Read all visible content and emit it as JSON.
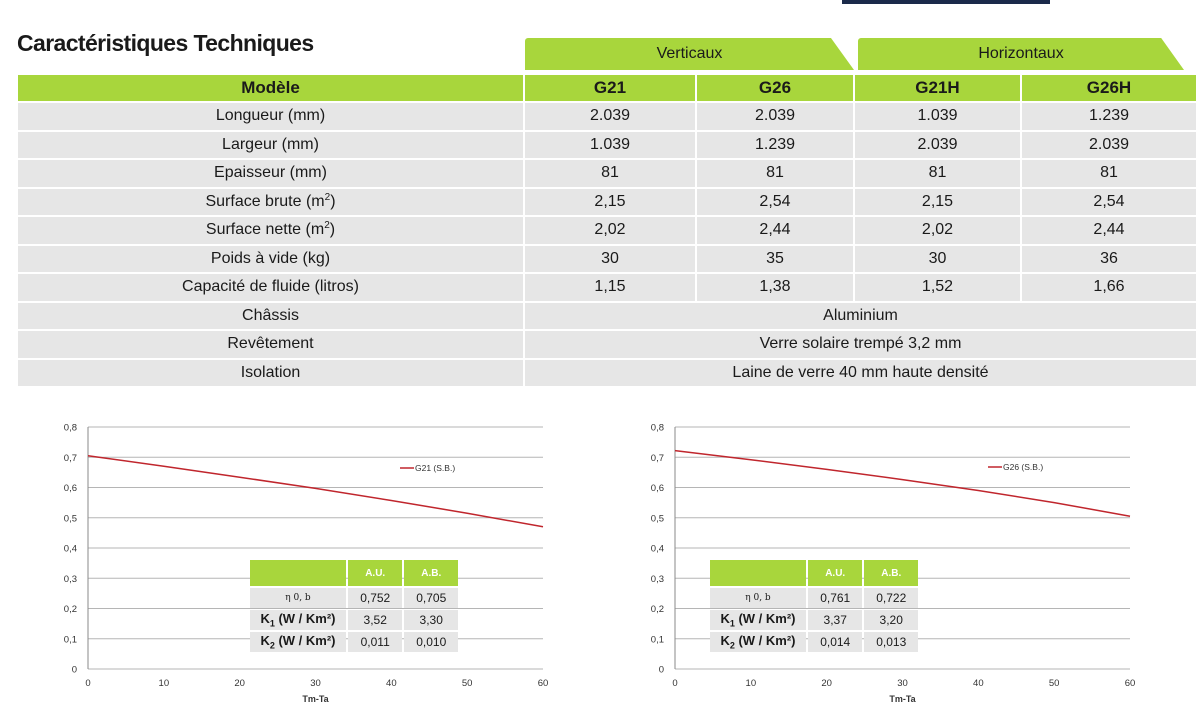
{
  "title": "Caractéristiques Techniques",
  "groups": {
    "vertical": "Verticaux",
    "horizontal": "Horizontaux"
  },
  "colors": {
    "accent_green": "#a8d63c",
    "row_grey": "#e6e6e6",
    "curve_red": "#c0262d"
  },
  "table": {
    "model_header": "Modèle",
    "models": [
      "G21",
      "G26",
      "G21H",
      "G26H"
    ],
    "rows": [
      {
        "label": "Longueur (mm)",
        "values": [
          "2.039",
          "2.039",
          "1.039",
          "1.239"
        ]
      },
      {
        "label": "Largeur (mm)",
        "values": [
          "1.039",
          "1.239",
          "2.039",
          "2.039"
        ]
      },
      {
        "label": "Epaisseur (mm)",
        "values": [
          "81",
          "81",
          "81",
          "81"
        ]
      },
      {
        "label": "Surface brute (m",
        "sup": "2",
        "suffix": ")",
        "values": [
          "2,15",
          "2,54",
          "2,15",
          "2,54"
        ]
      },
      {
        "label": "Surface nette (m",
        "sup": "2",
        "suffix": ")",
        "values": [
          "2,02",
          "2,44",
          "2,02",
          "2,44"
        ]
      },
      {
        "label": "Poids à vide (kg)",
        "values": [
          "30",
          "35",
          "30",
          "36"
        ]
      },
      {
        "label": "Capacité de fluide (litros)",
        "values": [
          "1,15",
          "1,38",
          "1,52",
          "1,66"
        ]
      }
    ],
    "merged_rows": [
      {
        "label": "Châssis",
        "value": "Aluminium"
      },
      {
        "label": "Revêtement",
        "value": "Verre solaire trempé 3,2 mm"
      },
      {
        "label": "Isolation",
        "value": "Laine de verre 40 mm haute densité"
      }
    ]
  },
  "chart_data": [
    {
      "type": "line",
      "xlabel": "Tm-Ta",
      "ylabel": "",
      "xlim": [
        0,
        60
      ],
      "ylim": [
        0,
        0.8
      ],
      "x_ticks": [
        "0",
        "10",
        "20",
        "30",
        "40",
        "50",
        "60"
      ],
      "y_ticks": [
        "0",
        "0,1",
        "0,2",
        "0,3",
        "0,4",
        "0,5",
        "0,6",
        "0,7",
        "0,8"
      ],
      "grid": true,
      "legend_position": "top-right",
      "series": [
        {
          "name": "G21 (S.B.)",
          "x": [
            0,
            10,
            20,
            30,
            40,
            50,
            60
          ],
          "y": [
            0.705,
            0.67,
            0.634,
            0.597,
            0.557,
            0.515,
            0.47
          ]
        }
      ],
      "coefficients": {
        "columns": [
          "A.U.",
          "A.B."
        ],
        "rows": [
          {
            "label": "η 0, b",
            "values": [
              "0,752",
              "0,705"
            ]
          },
          {
            "label": "K",
            "sub": "1",
            "suffix": " (W / Km²)",
            "values": [
              "3,52",
              "3,30"
            ]
          },
          {
            "label": "K",
            "sub": "2",
            "suffix": " (W / Km²)",
            "values": [
              "0,011",
              "0,010"
            ]
          }
        ]
      }
    },
    {
      "type": "line",
      "xlabel": "Tm-Ta",
      "ylabel": "",
      "xlim": [
        0,
        60
      ],
      "ylim": [
        0,
        0.8
      ],
      "x_ticks": [
        "0",
        "10",
        "20",
        "30",
        "40",
        "50",
        "60"
      ],
      "y_ticks": [
        "0",
        "0,1",
        "0,2",
        "0,3",
        "0,4",
        "0,5",
        "0,6",
        "0,7",
        "0,8"
      ],
      "grid": true,
      "legend_position": "top-right",
      "series": [
        {
          "name": "G26 (S.B.)",
          "x": [
            0,
            10,
            20,
            30,
            40,
            50,
            60
          ],
          "y": [
            0.722,
            0.692,
            0.66,
            0.626,
            0.59,
            0.55,
            0.505
          ]
        }
      ],
      "coefficients": {
        "columns": [
          "A.U.",
          "A.B."
        ],
        "rows": [
          {
            "label": "η 0, b",
            "values": [
              "0,761",
              "0,722"
            ]
          },
          {
            "label": "K",
            "sub": "1",
            "suffix": " (W / Km²)",
            "values": [
              "3,37",
              "3,20"
            ]
          },
          {
            "label": "K",
            "sub": "2",
            "suffix": " (W / Km²)",
            "values": [
              "0,014",
              "0,013"
            ]
          }
        ]
      }
    }
  ]
}
